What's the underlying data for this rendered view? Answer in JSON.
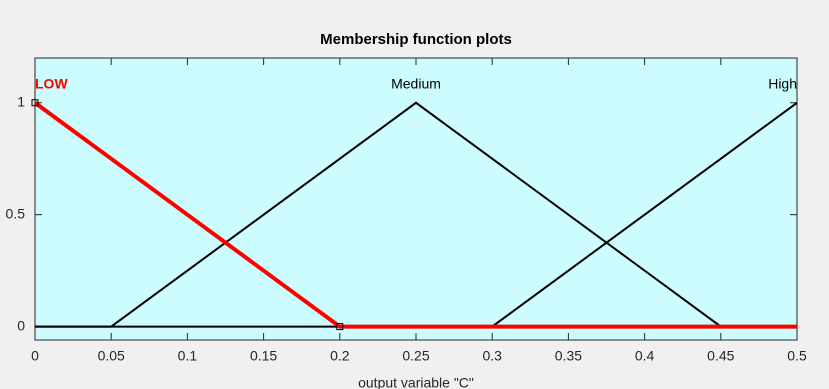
{
  "chart_data": {
    "type": "line",
    "title": "Membership function plots",
    "x_label": "output variable \"C\"",
    "xlim": [
      0,
      0.5
    ],
    "xticks": [
      0,
      0.05,
      0.1,
      0.15,
      0.2,
      0.25,
      0.3,
      0.35,
      0.4,
      0.45,
      0.5
    ],
    "ylim": [
      -0.06,
      1.2
    ],
    "yticks": [
      0,
      0.5,
      1
    ],
    "background": "#ccfcfd",
    "series": [
      {
        "name": "LOW",
        "color": "#ff0000",
        "x": [
          0,
          0.2,
          0.5
        ],
        "values": [
          1,
          0,
          0
        ]
      },
      {
        "name": "Medium",
        "color": "#000000",
        "x": [
          0,
          0.05,
          0.25,
          0.45,
          0.5
        ],
        "values": [
          0,
          0,
          1,
          0,
          0
        ]
      },
      {
        "name": "High",
        "color": "#000000",
        "x": [
          0,
          0.3,
          0.5
        ],
        "values": [
          0,
          0,
          1
        ]
      }
    ]
  }
}
